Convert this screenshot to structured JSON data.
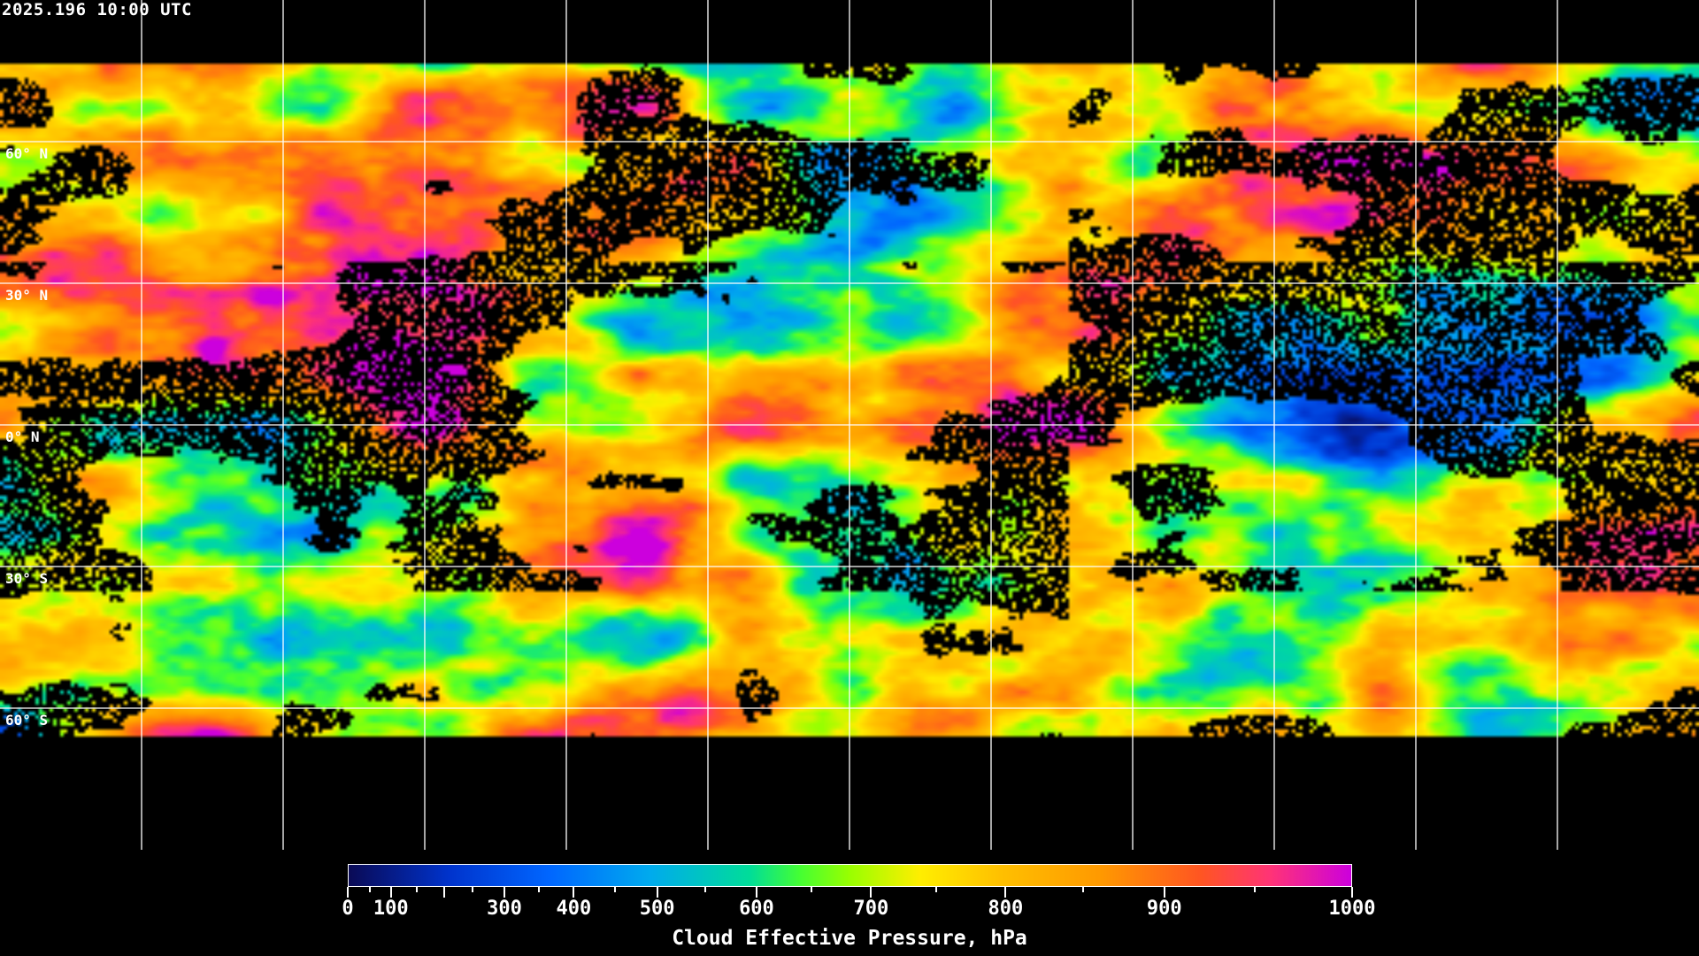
{
  "timestamp": "2025.196 10:00 UTC",
  "map": {
    "projection": "equirectangular",
    "grid": true,
    "longitude_spacing_deg": 30,
    "latitude_labels": [
      "60° N",
      "30° N",
      "0° N",
      "30° S",
      "60° S"
    ],
    "no_data_color": "#000000",
    "gridline_color": "#ffffff",
    "coastline_color": "#ffffff"
  },
  "colorbar": {
    "title": "Cloud Effective Pressure, hPa",
    "range": [
      0,
      1000
    ],
    "tick_labels": [
      "0",
      "100",
      "300",
      "400",
      "500",
      "600",
      "700",
      "800",
      "900",
      "1000"
    ],
    "colors": [
      "#0a0a55",
      "#0033cc",
      "#0066ff",
      "#00aaee",
      "#00dd99",
      "#44ff33",
      "#99ff00",
      "#ffee00",
      "#ffc000",
      "#ff9900",
      "#ff5522",
      "#ff3377",
      "#cc00dd"
    ]
  }
}
